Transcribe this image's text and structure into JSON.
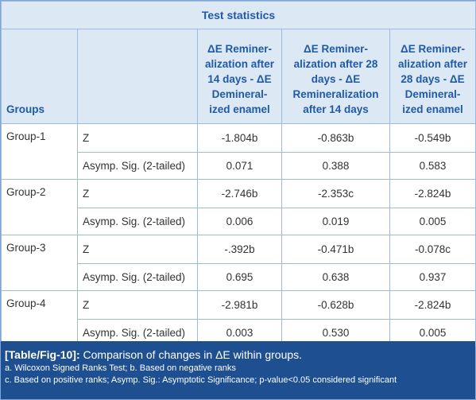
{
  "table": {
    "title": "Test statistics",
    "header": [
      "Groups",
      "",
      "ΔE Reminer-alization after 14 days - ΔE Demineral-ized enamel",
      "ΔE Reminer-alization after 28 days - ΔE Remineralization after 14 days",
      "ΔE Reminer-alization after 28 days - ΔE Demineral-ized enamel"
    ],
    "groups": [
      {
        "name": "Group-1",
        "rows": [
          [
            "Z",
            "-1.804b",
            "-0.863b",
            "-0.549b"
          ],
          [
            "Asymp. Sig. (2-tailed)",
            "0.071",
            "0.388",
            "0.583"
          ]
        ]
      },
      {
        "name": "Group-2",
        "rows": [
          [
            "Z",
            "-2.746b",
            "-2.353c",
            "-2.824b"
          ],
          [
            "Asymp. Sig. (2-tailed)",
            "0.006",
            "0.019",
            "0.005"
          ]
        ]
      },
      {
        "name": "Group-3",
        "rows": [
          [
            "Z",
            "-.392b",
            "-0.471b",
            "-0.078c"
          ],
          [
            "Asymp. Sig. (2-tailed)",
            "0.695",
            "0.638",
            "0.937"
          ]
        ]
      },
      {
        "name": "Group-4",
        "rows": [
          [
            "Z",
            "-2.981b",
            "-0.628b",
            "-2.824b"
          ],
          [
            "Asymp. Sig. (2-tailed)",
            "0.003",
            "0.530",
            "0.005"
          ]
        ]
      }
    ]
  },
  "caption": {
    "label": "[Table/Fig-10]:",
    "text": "Comparison of changes in ΔE within groups.",
    "notes": [
      "a. Wilcoxon Signed Ranks Test; b. Based on negative ranks",
      "c. Based on positive ranks; Asymp. Sig.: Asymptotic Significance; p-value<0.05 considered significant"
    ]
  }
}
